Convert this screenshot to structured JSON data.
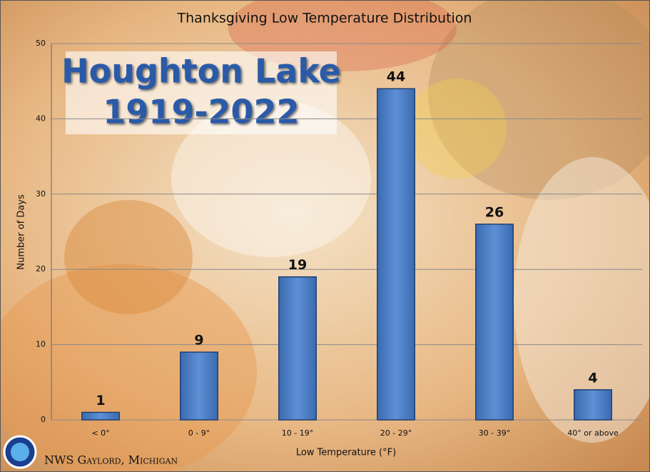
{
  "chart_data": {
    "type": "bar",
    "title": "Thanksgiving Low Temperature Distribution",
    "annotations": [
      "Houghton Lake",
      "1919-2022"
    ],
    "credit": "NWS Gaylord, Michigan",
    "x_label": "Low Temperature (°F)",
    "y_label": "Number of Days",
    "categories": [
      "< 0°",
      "0 - 9°",
      "10 - 19°",
      "20 - 29°",
      "30 - 39°",
      "40° or above"
    ],
    "values": [
      1,
      9,
      19,
      44,
      26,
      4
    ],
    "color": "#4f81bd",
    "ylim": [
      0,
      50
    ],
    "yticks": [
      0,
      10,
      20,
      30,
      40,
      50
    ],
    "grid": true
  }
}
